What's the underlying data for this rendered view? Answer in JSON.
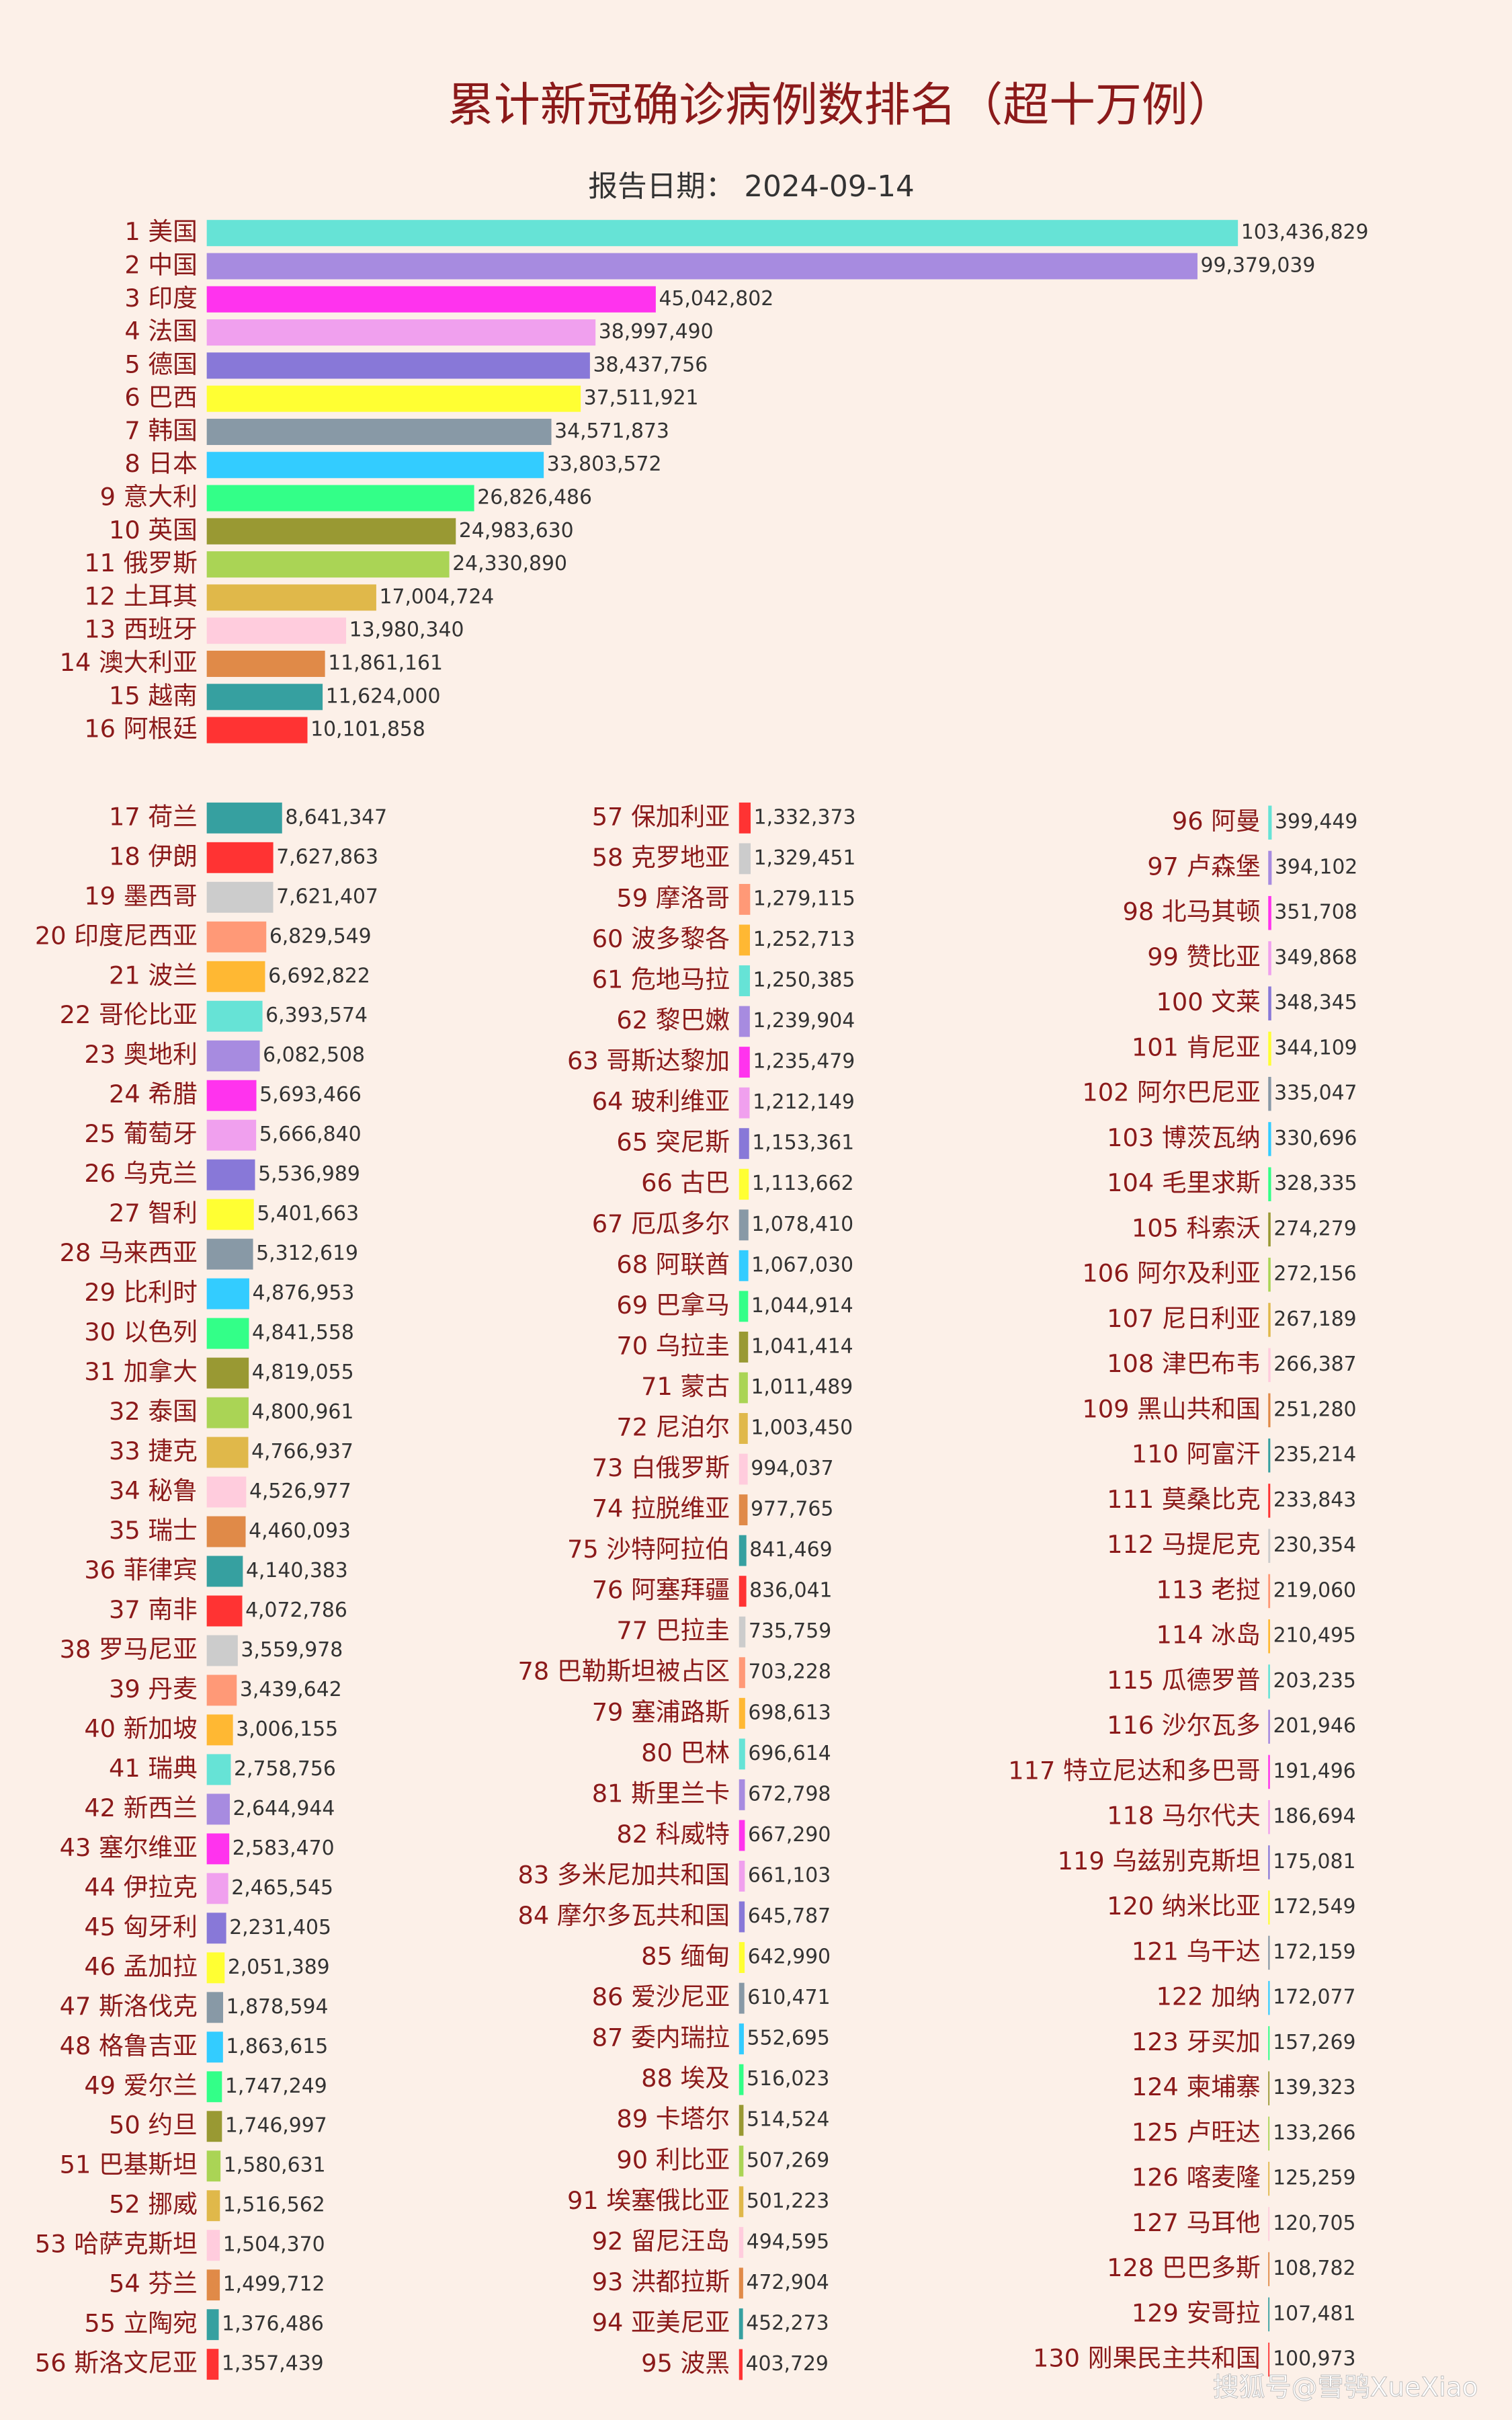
{
  "title": "累计新冠确诊病例数排名（超十万例）",
  "subtitle": "报告日期： 2024-09-14",
  "watermark": "搜狐号@雪鸮XueXiao",
  "chart_data": [
    {
      "type": "bar",
      "orientation": "horizontal",
      "xlim": [
        0,
        130000000
      ],
      "colors": [
        "#66e3d6",
        "#a78be0",
        "#ff33ee",
        "#f0a0ee",
        "#8878d8",
        "#ffff33",
        "#8899a6",
        "#33ccff",
        "#33ff88",
        "#999933",
        "#aad455",
        "#e0b84a",
        "#ffccdd",
        "#e08a48",
        "#36a0a0",
        "#ff3333",
        "#cccccc",
        "#ff9977",
        "#ffb833"
      ],
      "categories": [
        "1 美国",
        "2 中国",
        "3 印度",
        "4 法国",
        "5 德国",
        "6 巴西",
        "7 韩国",
        "8 日本",
        "9 意大利",
        "10 英国",
        "11 俄罗斯",
        "12 土耳其",
        "13 西班牙",
        "14 澳大利亚",
        "15 越南",
        "16 阿根廷"
      ],
      "values": [
        103436829,
        99379039,
        45042802,
        38997490,
        38437756,
        37511921,
        34571873,
        33803572,
        26826486,
        24983630,
        24330890,
        17004724,
        13980340,
        11861161,
        11624000,
        10101858
      ],
      "value_labels": [
        "103,436,829",
        "99,379,039",
        "45,042,802",
        "38,997,490",
        "38,437,756",
        "37,511,921",
        "34,571,873",
        "33,803,572",
        "26,826,486",
        "24,983,630",
        "24,330,890",
        "17,004,724",
        "13,980,340",
        "11,861,161",
        "11,624,000",
        "10,101,858"
      ]
    },
    {
      "type": "bar",
      "orientation": "horizontal",
      "xlim": [
        0,
        40000000
      ],
      "colors": [
        "#36a0a0",
        "#ff3333",
        "#cccccc",
        "#ff9977",
        "#ffb833",
        "#66e3d6",
        "#a78be0",
        "#ff33ee",
        "#f0a0ee",
        "#8878d8",
        "#ffff33",
        "#8899a6",
        "#33ccff",
        "#33ff88",
        "#999933",
        "#aad455",
        "#e0b84a",
        "#ffccdd",
        "#e08a48"
      ],
      "categories": [
        "17 荷兰",
        "18 伊朗",
        "19 墨西哥",
        "20 印度尼西亚",
        "21 波兰",
        "22 哥伦比亚",
        "23 奥地利",
        "24 希腊",
        "25 葡萄牙",
        "26 乌克兰",
        "27 智利",
        "28 马来西亚",
        "29 比利时",
        "30 以色列",
        "31 加拿大",
        "32 泰国",
        "33 捷克",
        "34 秘鲁",
        "35 瑞士",
        "36 菲律宾",
        "37 南非",
        "38 罗马尼亚",
        "39 丹麦",
        "40 新加坡",
        "41 瑞典",
        "42 新西兰",
        "43 塞尔维亚",
        "44 伊拉克",
        "45 匈牙利",
        "46 孟加拉",
        "47 斯洛伐克",
        "48 格鲁吉亚",
        "49 爱尔兰",
        "50 约旦",
        "51 巴基斯坦",
        "52 挪威",
        "53 哈萨克斯坦",
        "54 芬兰",
        "55 立陶宛",
        "56 斯洛文尼亚"
      ],
      "values": [
        8641347,
        7627863,
        7621407,
        6829549,
        6692822,
        6393574,
        6082508,
        5693466,
        5666840,
        5536989,
        5401663,
        5312619,
        4876953,
        4841558,
        4819055,
        4800961,
        4766937,
        4526977,
        4460093,
        4140383,
        4072786,
        3559978,
        3439642,
        3006155,
        2758756,
        2644944,
        2583470,
        2465545,
        2231405,
        2051389,
        1878594,
        1863615,
        1747249,
        1746997,
        1580631,
        1516562,
        1504370,
        1499712,
        1376486,
        1357439
      ],
      "value_labels": [
        "8,641,347",
        "7,627,863",
        "7,621,407",
        "6,829,549",
        "6,692,822",
        "6,393,574",
        "6,082,508",
        "5,693,466",
        "5,666,840",
        "5,536,989",
        "5,401,663",
        "5,312,619",
        "4,876,953",
        "4,841,558",
        "4,819,055",
        "4,800,961",
        "4,766,937",
        "4,526,977",
        "4,460,093",
        "4,140,383",
        "4,072,786",
        "3,559,978",
        "3,439,642",
        "3,006,155",
        "2,758,756",
        "2,644,944",
        "2,583,470",
        "2,465,545",
        "2,231,405",
        "2,051,389",
        "1,878,594",
        "1,863,615",
        "1,747,249",
        "1,746,997",
        "1,580,631",
        "1,516,562",
        "1,504,370",
        "1,499,712",
        "1,376,486",
        "1,357,439"
      ]
    },
    {
      "type": "bar",
      "orientation": "horizontal",
      "xlim": [
        0,
        40000000
      ],
      "colors": [
        "#ff3333",
        "#cccccc",
        "#ff9977",
        "#ffb833",
        "#66e3d6",
        "#a78be0",
        "#ff33ee",
        "#f0a0ee",
        "#8878d8",
        "#ffff33",
        "#8899a6",
        "#33ccff",
        "#33ff88",
        "#999933",
        "#aad455",
        "#e0b84a",
        "#ffccdd",
        "#e08a48",
        "#36a0a0"
      ],
      "categories": [
        "57 保加利亚",
        "58 克罗地亚",
        "59 摩洛哥",
        "60 波多黎各",
        "61 危地马拉",
        "62 黎巴嫩",
        "63 哥斯达黎加",
        "64 玻利维亚",
        "65 突尼斯",
        "66 古巴",
        "67 厄瓜多尔",
        "68 阿联酋",
        "69 巴拿马",
        "70 乌拉圭",
        "71 蒙古",
        "72 尼泊尔",
        "73 白俄罗斯",
        "74 拉脱维亚",
        "75 沙特阿拉伯",
        "76 阿塞拜疆",
        "77 巴拉圭",
        "78 巴勒斯坦被占区",
        "79 塞浦路斯",
        "80 巴林",
        "81 斯里兰卡",
        "82 科威特",
        "83 多米尼加共和国",
        "84 摩尔多瓦共和国",
        "85 缅甸",
        "86 爱沙尼亚",
        "87 委内瑞拉",
        "88 埃及",
        "89 卡塔尔",
        "90 利比亚",
        "91 埃塞俄比亚",
        "92 留尼汪岛",
        "93 洪都拉斯",
        "94 亚美尼亚",
        "95 波黑"
      ],
      "values": [
        1332373,
        1329451,
        1279115,
        1252713,
        1250385,
        1239904,
        1235479,
        1212149,
        1153361,
        1113662,
        1078410,
        1067030,
        1044914,
        1041414,
        1011489,
        1003450,
        994037,
        977765,
        841469,
        836041,
        735759,
        703228,
        698613,
        696614,
        672798,
        667290,
        661103,
        645787,
        642990,
        610471,
        552695,
        516023,
        514524,
        507269,
        501223,
        494595,
        472904,
        452273,
        403729
      ],
      "value_labels": [
        "1,332,373",
        "1,329,451",
        "1,279,115",
        "1,252,713",
        "1,250,385",
        "1,239,904",
        "1,235,479",
        "1,212,149",
        "1,153,361",
        "1,113,662",
        "1,078,410",
        "1,067,030",
        "1,044,914",
        "1,041,414",
        "1,011,489",
        "1,003,450",
        "994,037",
        "977,765",
        "841,469",
        "836,041",
        "735,759",
        "703,228",
        "698,613",
        "696,614",
        "672,798",
        "667,290",
        "661,103",
        "645,787",
        "642,990",
        "610,471",
        "552,695",
        "516,023",
        "514,524",
        "507,269",
        "501,223",
        "494,595",
        "472,904",
        "452,273",
        "403,729"
      ]
    },
    {
      "type": "bar",
      "orientation": "horizontal",
      "xlim": [
        0,
        40000000
      ],
      "colors": [
        "#66e3d6",
        "#a78be0",
        "#ff33ee",
        "#f0a0ee",
        "#8878d8",
        "#ffff33",
        "#8899a6",
        "#33ccff",
        "#33ff88",
        "#999933",
        "#aad455",
        "#e0b84a",
        "#ffccdd",
        "#e08a48",
        "#36a0a0",
        "#ff3333",
        "#cccccc",
        "#ff9977",
        "#ffb833"
      ],
      "categories": [
        "96 阿曼",
        "97 卢森堡",
        "98 北马其顿",
        "99 赞比亚",
        "100 文莱",
        "101 肯尼亚",
        "102 阿尔巴尼亚",
        "103 博茨瓦纳",
        "104 毛里求斯",
        "105 科索沃",
        "106 阿尔及利亚",
        "107 尼日利亚",
        "108 津巴布韦",
        "109 黑山共和国",
        "110 阿富汗",
        "111 莫桑比克",
        "112 马提尼克",
        "113 老挝",
        "114 冰岛",
        "115 瓜德罗普",
        "116 沙尔瓦多",
        "117 特立尼达和多巴哥",
        "118 马尔代夫",
        "119 乌兹别克斯坦",
        "120 纳米比亚",
        "121 乌干达",
        "122 加纳",
        "123 牙买加",
        "124 柬埔寨",
        "125 卢旺达",
        "126 喀麦隆",
        "127 马耳他",
        "128 巴巴多斯",
        "129 安哥拉",
        "130 刚果民主共和国"
      ],
      "values": [
        399449,
        394102,
        351708,
        349868,
        348345,
        344109,
        335047,
        330696,
        328335,
        274279,
        272156,
        267189,
        266387,
        251280,
        235214,
        233843,
        230354,
        219060,
        210495,
        203235,
        201946,
        191496,
        186694,
        175081,
        172549,
        172159,
        172077,
        157269,
        139323,
        133266,
        125259,
        120705,
        108782,
        107481,
        100973
      ],
      "value_labels": [
        "399,449",
        "394,102",
        "351,708",
        "349,868",
        "348,345",
        "344,109",
        "335,047",
        "330,696",
        "328,335",
        "274,279",
        "272,156",
        "267,189",
        "266,387",
        "251,280",
        "235,214",
        "233,843",
        "230,354",
        "219,060",
        "210,495",
        "203,235",
        "201,946",
        "191,496",
        "186,694",
        "175,081",
        "172,549",
        "172,159",
        "172,077",
        "157,269",
        "139,323",
        "133,266",
        "125,259",
        "120,705",
        "108,782",
        "107,481",
        "100,973"
      ]
    }
  ]
}
